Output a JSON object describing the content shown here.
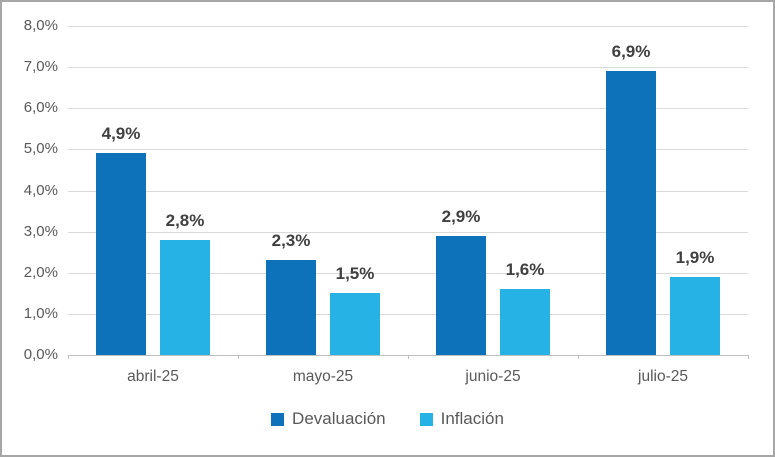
{
  "chart_data": {
    "type": "bar",
    "title": "",
    "xlabel": "",
    "ylabel": "",
    "categories": [
      "abril-25",
      "mayo-25",
      "junio-25",
      "julio-25"
    ],
    "series": [
      {
        "name": "Devaluación",
        "color": "#0e72ba",
        "values": [
          4.9,
          2.3,
          2.9,
          6.9
        ],
        "labels": [
          "4,9%",
          "2,3%",
          "2,9%",
          "6,9%"
        ]
      },
      {
        "name": "Inflación",
        "color": "#27b2e6",
        "values": [
          2.8,
          1.5,
          1.6,
          1.9
        ],
        "labels": [
          "2,8%",
          "1,5%",
          "1,6%",
          "1,9%"
        ]
      }
    ],
    "y_axis": {
      "min": 0,
      "max": 8,
      "step": 1,
      "tick_labels": [
        "0,0%",
        "1,0%",
        "2,0%",
        "3,0%",
        "4,0%",
        "5,0%",
        "6,0%",
        "7,0%",
        "8,0%"
      ]
    },
    "legend": {
      "position": "bottom",
      "entries": [
        "Devaluación",
        "Inflación"
      ]
    },
    "grid": true,
    "colors": {
      "gridline": "#d9d9d9",
      "axis_line": "#bfbfbf",
      "axis_text": "#595959",
      "data_label_text": "#404040",
      "frame_border": "#a6a6a6",
      "background": "#ffffff"
    }
  }
}
